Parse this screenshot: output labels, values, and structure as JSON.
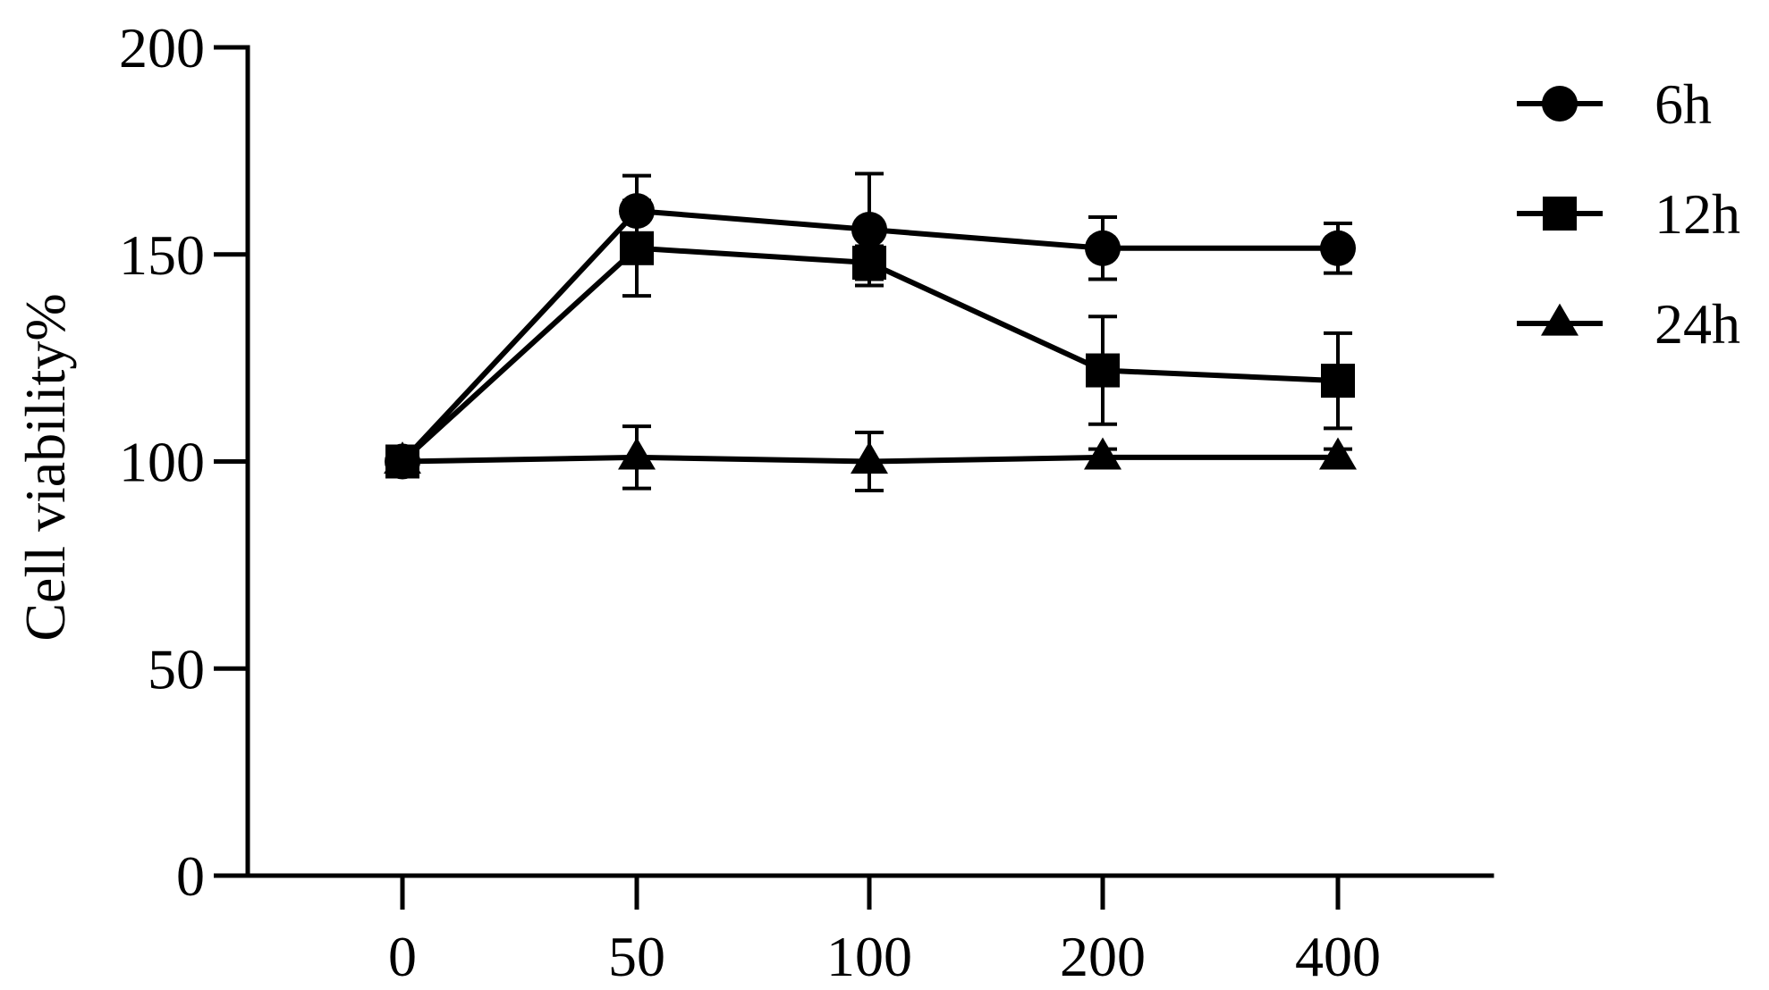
{
  "chart_data": {
    "type": "line",
    "title": "",
    "xlabel": "",
    "ylabel": "Cell viability%",
    "ylim": [
      0,
      200
    ],
    "y_ticks": [
      0,
      50,
      100,
      150,
      200
    ],
    "categories": [
      "0",
      "50",
      "100",
      "200",
      "400"
    ],
    "grid": false,
    "legend_position": "top-right",
    "color": "#000000",
    "series": [
      {
        "name": "6h",
        "marker": "circle",
        "values": [
          100,
          160.5,
          156,
          151.5,
          151.5
        ],
        "errors": [
          0,
          8.5,
          13.5,
          7.5,
          6
        ]
      },
      {
        "name": "12h",
        "marker": "square",
        "values": [
          100,
          151.5,
          148,
          122,
          119.5
        ],
        "errors": [
          0,
          11.5,
          4,
          13,
          11.5
        ]
      },
      {
        "name": "24h",
        "marker": "triangle",
        "values": [
          100,
          101,
          100,
          101,
          101
        ],
        "errors": [
          0,
          7.5,
          7,
          2,
          2
        ]
      }
    ]
  }
}
